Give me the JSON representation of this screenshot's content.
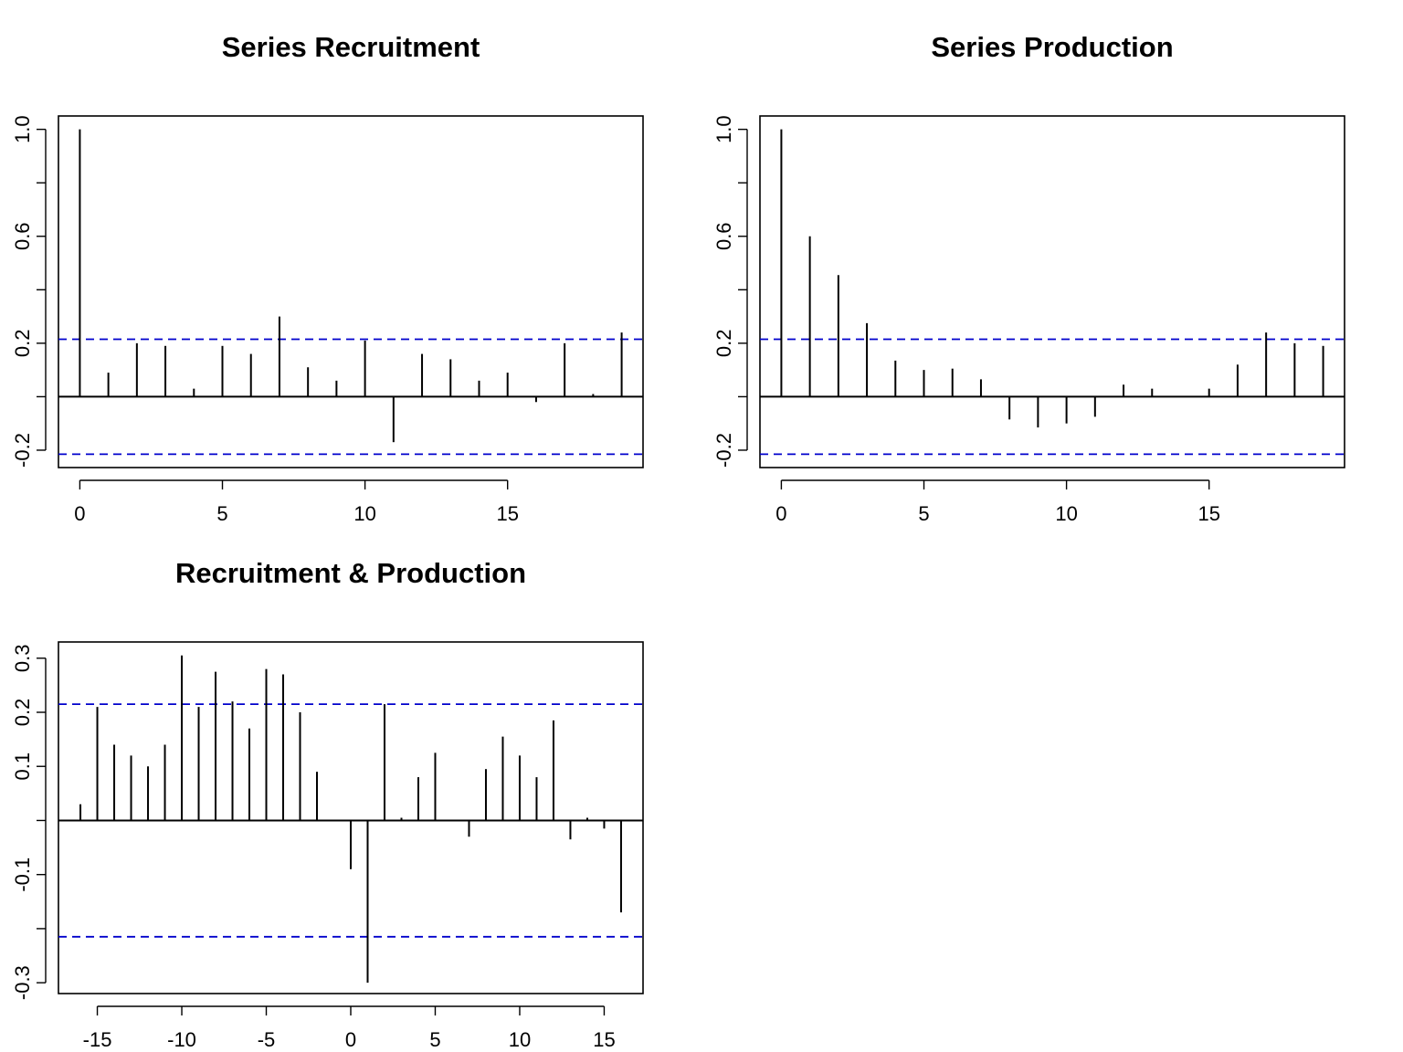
{
  "chart_data": [
    {
      "type": "bar",
      "title": "Series  Recruitment",
      "xlabel": "",
      "ylabel": "",
      "x": [
        0,
        1,
        2,
        3,
        4,
        5,
        6,
        7,
        8,
        9,
        10,
        11,
        12,
        13,
        14,
        15,
        16,
        17,
        18,
        19
      ],
      "values": [
        1.0,
        0.09,
        0.2,
        0.19,
        0.03,
        0.19,
        0.16,
        0.3,
        0.11,
        0.06,
        0.21,
        -0.17,
        0.16,
        0.14,
        0.06,
        0.09,
        -0.02,
        0.2,
        0.01,
        0.24
      ],
      "ci": 0.215,
      "xlim": [
        -0.75,
        19.75
      ],
      "ylim": [
        -0.265,
        1.05
      ],
      "xticks": [
        0,
        5,
        10,
        15
      ],
      "xtick_labels": [
        "0",
        "5",
        "10",
        "15"
      ],
      "yticks": [
        -0.2,
        0.0,
        0.2,
        0.4,
        0.6,
        0.8,
        1.0
      ],
      "ytick_labels": [
        "-0.2",
        "0.2",
        "0.6",
        "1.0"
      ],
      "ytick_label_values": [
        -0.2,
        0.2,
        0.6,
        1.0
      ]
    },
    {
      "type": "bar",
      "title": "Series  Production",
      "xlabel": "",
      "ylabel": "",
      "x": [
        0,
        1,
        2,
        3,
        4,
        5,
        6,
        7,
        8,
        9,
        10,
        11,
        12,
        13,
        14,
        15,
        16,
        17,
        18,
        19
      ],
      "values": [
        1.0,
        0.6,
        0.455,
        0.275,
        0.135,
        0.1,
        0.105,
        0.065,
        -0.085,
        -0.115,
        -0.1,
        -0.075,
        0.045,
        0.03,
        0.0,
        0.03,
        0.12,
        0.24,
        0.2,
        0.19
      ],
      "ci": 0.215,
      "xlim": [
        -0.75,
        19.75
      ],
      "ylim": [
        -0.265,
        1.05
      ],
      "xticks": [
        0,
        5,
        10,
        15
      ],
      "xtick_labels": [
        "0",
        "5",
        "10",
        "15"
      ],
      "yticks": [
        -0.2,
        0.0,
        0.2,
        0.4,
        0.6,
        0.8,
        1.0
      ],
      "ytick_labels": [
        "-0.2",
        "0.2",
        "0.6",
        "1.0"
      ],
      "ytick_label_values": [
        -0.2,
        0.2,
        0.6,
        1.0
      ]
    },
    {
      "type": "bar",
      "title": "Recruitment & Production",
      "xlabel": "",
      "ylabel": "",
      "x": [
        -16,
        -15,
        -14,
        -13,
        -12,
        -11,
        -10,
        -9,
        -8,
        -7,
        -6,
        -5,
        -4,
        -3,
        -2,
        -1,
        0,
        1,
        2,
        3,
        4,
        5,
        6,
        7,
        8,
        9,
        10,
        11,
        12,
        13,
        14,
        15,
        16
      ],
      "values": [
        0.03,
        0.21,
        0.14,
        0.12,
        0.1,
        0.14,
        0.305,
        0.21,
        0.275,
        0.22,
        0.17,
        0.28,
        0.27,
        0.2,
        0.09,
        0.0,
        -0.09,
        -0.3,
        0.215,
        0.005,
        0.08,
        0.125,
        0.0,
        -0.03,
        0.095,
        0.155,
        0.12,
        0.08,
        0.185,
        -0.035,
        0.005,
        -0.015,
        -0.17
      ],
      "ci": 0.215,
      "xlim": [
        -17.3,
        17.3
      ],
      "ylim": [
        -0.32,
        0.33
      ],
      "xticks": [
        -15,
        -10,
        -5,
        0,
        5,
        10,
        15
      ],
      "xtick_labels": [
        "-15",
        "-10",
        "-5",
        "0",
        "5",
        "10",
        "15"
      ],
      "yticks": [
        -0.3,
        -0.2,
        -0.1,
        0.0,
        0.1,
        0.2,
        0.3
      ],
      "ytick_labels": [
        "-0.3",
        "-0.1",
        "0.1",
        "0.2",
        "0.3"
      ],
      "ytick_label_values": [
        -0.3,
        -0.1,
        0.1,
        0.2,
        0.3
      ]
    }
  ]
}
